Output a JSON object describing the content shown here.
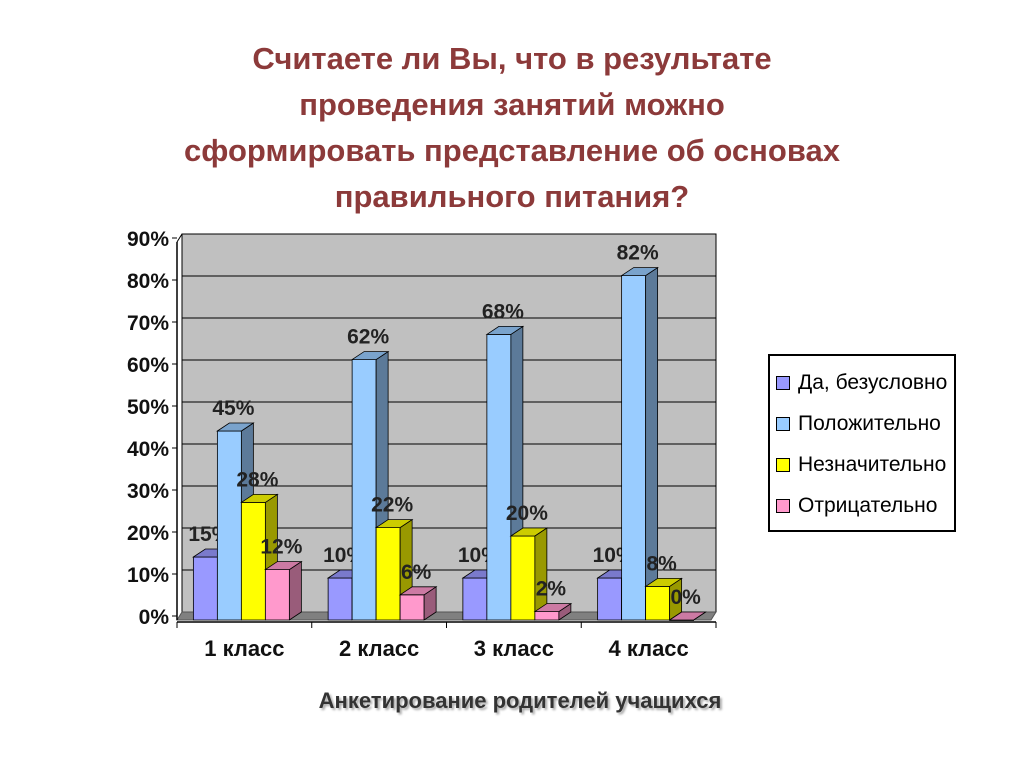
{
  "title_lines": [
    "Считаете ли Вы, что в результате",
    "проведения занятий можно",
    "сформировать  представление об основах",
    "правильного питания?"
  ],
  "chart_data": {
    "type": "bar",
    "title": "Считаете ли Вы, что в результате проведения занятий можно сформировать  представление об основах правильного питания?",
    "xlabel": "Анкетирование родителей учащихся",
    "ylabel": "",
    "categories": [
      "1 класс",
      "2 класс",
      "3 класс",
      "4 класс"
    ],
    "series": [
      {
        "name": "Да, безусловно",
        "values": [
          15,
          10,
          10,
          10
        ],
        "labels": [
          "15%",
          "10%",
          "10%",
          "10%"
        ],
        "color": "#9999ff"
      },
      {
        "name": "Положительно",
        "values": [
          45,
          62,
          68,
          82
        ],
        "labels": [
          "45%",
          "62%",
          "68%",
          "82%"
        ],
        "color": "#99ccff"
      },
      {
        "name": "Незначительно",
        "values": [
          28,
          22,
          20,
          8
        ],
        "labels": [
          "28%",
          "22%",
          "20%",
          "8%"
        ],
        "color": "#ffff00"
      },
      {
        "name": "Отрицательно",
        "values": [
          12,
          6,
          2,
          0
        ],
        "labels": [
          "12%",
          "6%",
          "2%",
          "0%"
        ],
        "color": "#ff99cc"
      }
    ],
    "ylim": [
      0,
      90
    ],
    "yticks": [
      "0%",
      "10%",
      "20%",
      "30%",
      "40%",
      "50%",
      "60%",
      "70%",
      "80%",
      "90%"
    ],
    "grid": true,
    "legend": "right",
    "colors": {
      "wall": "#c0c0c0",
      "floor": "#808080"
    }
  }
}
